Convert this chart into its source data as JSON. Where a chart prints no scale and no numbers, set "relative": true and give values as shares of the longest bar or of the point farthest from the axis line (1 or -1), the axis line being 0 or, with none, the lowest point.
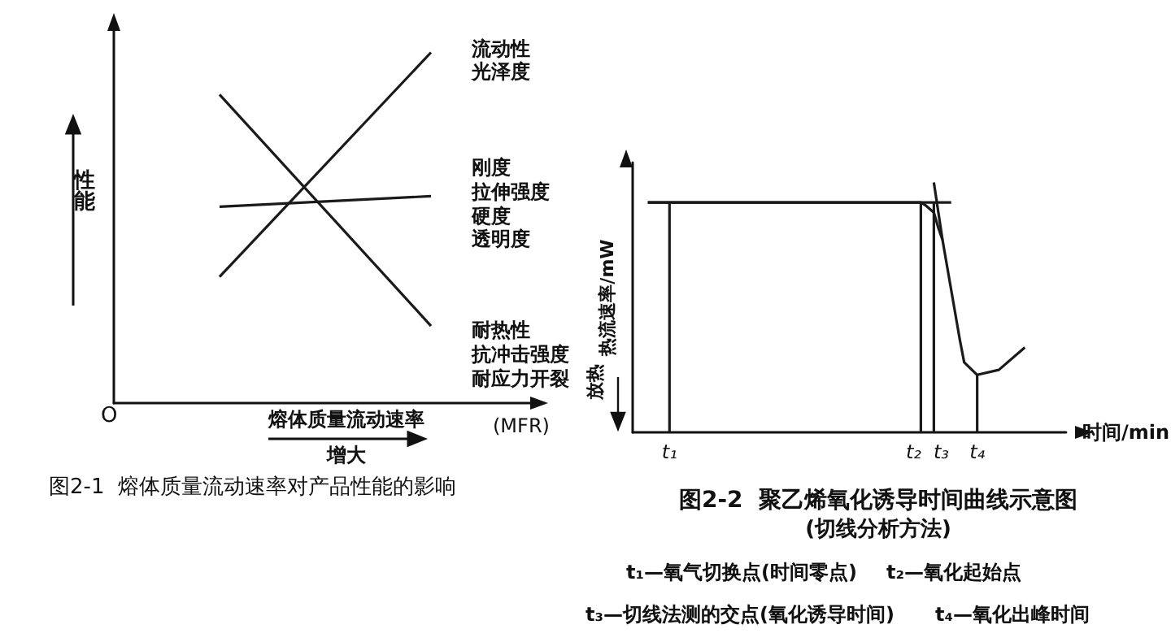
{
  "chart_data": [
    {
      "type": "line",
      "title": "图2-1  熔体质量流动速率对产品性能的影响",
      "xlabel": "熔体质量流动速率",
      "ylabel": "性能",
      "relative": true,
      "categories": [
        null,
        null
      ],
      "series": [
        {
          "color": "#1a1a1a",
          "values": [
            0.36,
            1
          ]
        },
        {
          "color": "#1a1a1a",
          "values": [
            0.56,
            0.59
          ]
        },
        {
          "color": "#1a1a1a",
          "values": [
            0.88,
            0.22
          ]
        }
      ],
      "annotations": [
        "O",
        "增大",
        "(MFR)",
        "流动性",
        "光泽度",
        "刚度",
        "拉伸强度",
        "硬度",
        "透明度",
        "耐热性",
        "抗冲击强度",
        "耐应力开裂"
      ],
      "marker": "none",
      "line_style": "solid"
    },
    {
      "type": "line",
      "title": "图2-2  聚乙烯氧化诱导时间曲线示意图",
      "subtitle": "(切线分析方法)",
      "xlabel": "时间/min",
      "ylabel": "热流速率/mW",
      "relative": true,
      "categories": [
        null,
        null,
        null,
        null,
        null,
        null,
        null,
        null,
        "t₁",
        null,
        null,
        null,
        null,
        null,
        null,
        null,
        null,
        null,
        null,
        null,
        null,
        null,
        null,
        null,
        null,
        null,
        null,
        null,
        null,
        null,
        null,
        null,
        null,
        null,
        null,
        null,
        null,
        null,
        null,
        null,
        null,
        null,
        null,
        null,
        null,
        null,
        null,
        null,
        null,
        null,
        null,
        null,
        null,
        null,
        null,
        null,
        null,
        null,
        null,
        null,
        null,
        null,
        null,
        null,
        null,
        null,
        "t₂",
        null,
        null,
        "t₃",
        null,
        null,
        null,
        null,
        null,
        null,
        null,
        null,
        null,
        "t₄",
        null,
        null,
        null,
        null,
        null,
        null,
        null,
        null,
        null,
        null,
        null,
        null,
        null,
        null,
        null,
        null,
        null,
        null,
        null,
        null
      ],
      "series": [
        {
          "color": "#1a1a1a",
          "values": [
            null,
            null,
            null,
            0.92,
            null,
            null,
            null,
            null,
            null,
            null,
            null,
            null,
            null,
            null,
            null,
            null,
            null,
            null,
            null,
            null,
            null,
            null,
            null,
            null,
            null,
            null,
            null,
            null,
            null,
            null,
            null,
            null,
            null,
            null,
            null,
            null,
            null,
            null,
            null,
            null,
            null,
            null,
            null,
            null,
            null,
            null,
            null,
            null,
            null,
            null,
            null,
            null,
            null,
            null,
            null,
            null,
            null,
            null,
            null,
            null,
            null,
            null,
            null,
            null,
            null,
            null,
            0.92,
            0.91,
            null,
            0.88,
            0.82,
            0.77,
            null,
            null,
            null,
            0.37,
            0.28,
            null,
            null,
            0.23,
            null,
            null,
            null,
            null,
            0.25,
            null,
            null,
            null,
            null,
            null,
            0.34,
            null,
            null,
            null,
            null,
            null,
            null,
            null,
            null,
            null
          ]
        },
        {
          "color": "#1a1a1a",
          "values": [
            null,
            null,
            null,
            0.92,
            null,
            null,
            null,
            null,
            null,
            null,
            null,
            null,
            null,
            null,
            null,
            null,
            null,
            null,
            null,
            null,
            null,
            null,
            null,
            null,
            null,
            null,
            null,
            null,
            null,
            null,
            null,
            null,
            null,
            null,
            null,
            null,
            null,
            null,
            null,
            null,
            null,
            null,
            null,
            null,
            null,
            null,
            null,
            null,
            null,
            null,
            null,
            null,
            null,
            null,
            null,
            null,
            null,
            null,
            null,
            null,
            null,
            null,
            null,
            null,
            null,
            null,
            null,
            null,
            null,
            null,
            null,
            null,
            null,
            0.92,
            null,
            null,
            null,
            null,
            null,
            null,
            null,
            null,
            null,
            null,
            null,
            null,
            null,
            null,
            null,
            null,
            null,
            null,
            null,
            null,
            null,
            null,
            null,
            null,
            null,
            null
          ]
        },
        {
          "color": "#1a1a1a",
          "values": [
            null,
            null,
            null,
            null,
            null,
            null,
            null,
            null,
            null,
            null,
            null,
            null,
            null,
            null,
            null,
            null,
            null,
            null,
            null,
            null,
            null,
            null,
            null,
            null,
            null,
            null,
            null,
            null,
            null,
            null,
            null,
            null,
            null,
            null,
            null,
            null,
            null,
            null,
            null,
            null,
            null,
            null,
            null,
            null,
            null,
            null,
            null,
            null,
            null,
            null,
            null,
            null,
            null,
            null,
            null,
            null,
            null,
            null,
            null,
            null,
            null,
            null,
            null,
            null,
            null,
            null,
            null,
            null,
            null,
            1,
            null,
            0.77,
            null,
            null,
            null,
            null,
            null,
            null,
            null,
            null,
            null,
            null,
            null,
            null,
            null,
            null,
            null,
            null,
            null,
            null,
            null,
            null,
            null,
            null,
            null,
            null,
            null,
            null,
            null,
            null
          ]
        },
        {
          "type": "bar",
          "color": "#1a1a1a",
          "values": [
            null,
            null,
            null,
            null,
            null,
            null,
            null,
            null,
            0.92,
            null,
            null,
            null,
            null,
            null,
            null,
            null,
            null,
            null,
            null,
            null,
            null,
            null,
            null,
            null,
            null,
            null,
            null,
            null,
            null,
            null,
            null,
            null,
            null,
            null,
            null,
            null,
            null,
            null,
            null,
            null,
            null,
            null,
            null,
            null,
            null,
            null,
            null,
            null,
            null,
            null,
            null,
            null,
            null,
            null,
            null,
            null,
            null,
            null,
            null,
            null,
            null,
            null,
            null,
            null,
            null,
            null,
            0.92,
            null,
            null,
            0.92,
            null,
            null,
            null,
            null,
            null,
            null,
            null,
            null,
            null,
            0.23,
            null,
            null,
            null,
            null,
            null,
            null,
            null,
            null,
            null,
            null,
            null,
            null,
            null,
            null,
            null,
            null,
            null,
            null,
            null,
            null
          ]
        }
      ],
      "annotations": [
        "放热",
        "t₁—氧气切换点(时间零点)",
        "t₂—氧化起始点",
        "t₃—切线法测的交点(氧化诱导时间)",
        "t₄—氧化出峰时间"
      ],
      "marker": "none",
      "line_style": "solid"
    }
  ]
}
